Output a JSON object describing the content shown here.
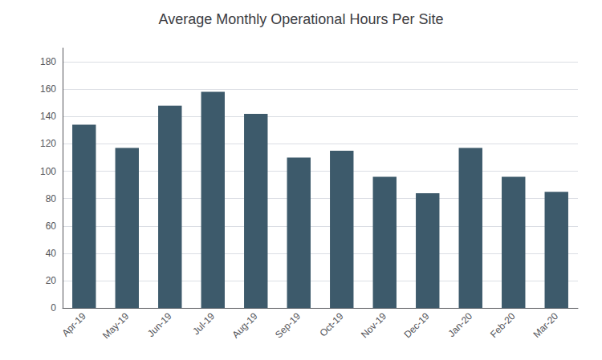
{
  "chart_data": {
    "type": "bar",
    "title": "Average Monthly Operational Hours Per Site",
    "categories": [
      "Apr-19",
      "May-19",
      "Jun-19",
      "Jul-19",
      "Aug-19",
      "Sep-19",
      "Oct-19",
      "Nov-19",
      "Dec-19",
      "Jan-20",
      "Feb-20",
      "Mar-20"
    ],
    "values": [
      134,
      117,
      148,
      158,
      142,
      110,
      115,
      96,
      84,
      117,
      96,
      85
    ],
    "color": "#3d5a6b",
    "ylim": [
      0,
      190
    ],
    "yticks": [
      0,
      20,
      40,
      60,
      80,
      100,
      120,
      140,
      160,
      180
    ],
    "grid": true
  }
}
